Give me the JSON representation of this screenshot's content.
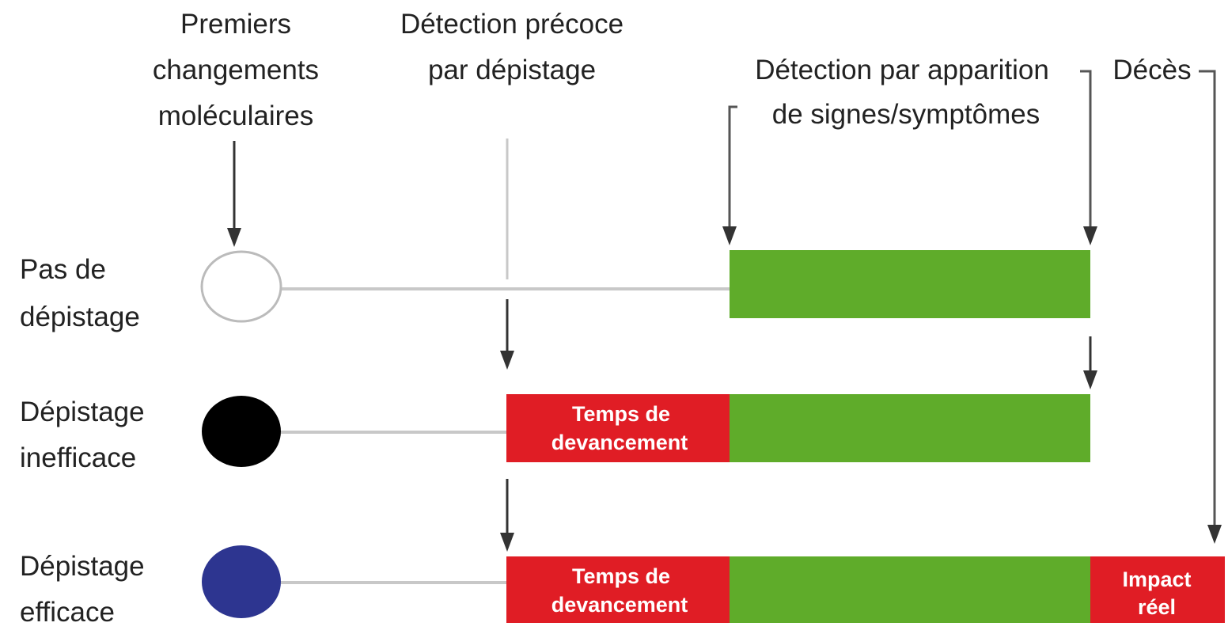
{
  "headers": {
    "molecular": [
      "Premiers",
      "changements",
      "moléculaires"
    ],
    "early_detection": [
      "Détection précoce",
      "par dépistage"
    ],
    "symptom_detection": [
      "Détection par apparition",
      "de signes/symptômes"
    ],
    "death": "Décès"
  },
  "rows": [
    {
      "label": [
        "Pas de",
        "dépistage"
      ],
      "circle_color": "#ffffff"
    },
    {
      "label": [
        "Dépistage",
        "inefficace"
      ],
      "circle_color": "#000000",
      "lead_time": [
        "Temps de",
        "devancement"
      ]
    },
    {
      "label": [
        "Dépistage",
        "efficace"
      ],
      "circle_color": "#2d3590",
      "lead_time": [
        "Temps de",
        "devancement"
      ],
      "impact": [
        "Impact",
        "réel"
      ]
    }
  ],
  "colors": {
    "green": "#5fac2a",
    "red": "#e01d25",
    "line": "#c8c8c8",
    "arrow": "#333333"
  }
}
